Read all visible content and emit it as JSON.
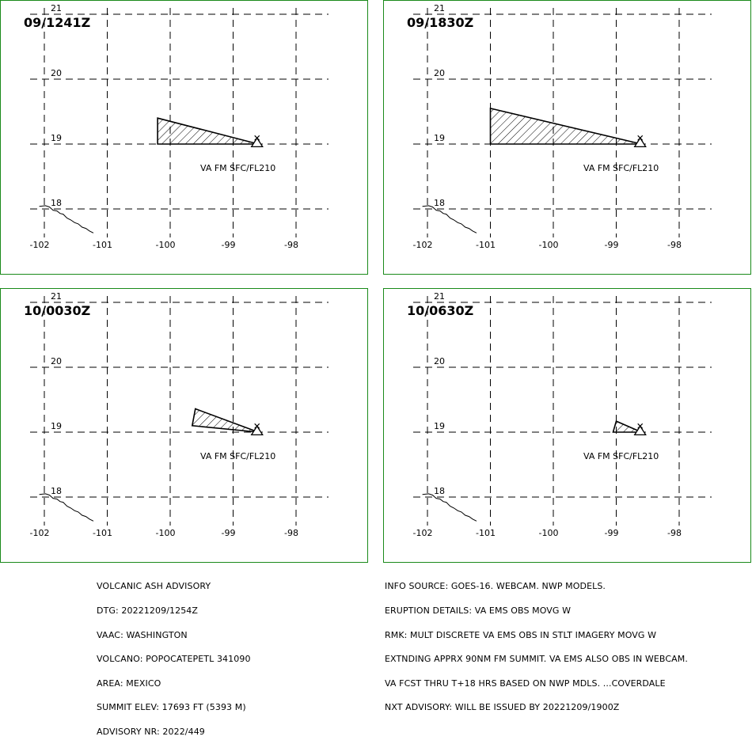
{
  "panels": [
    {
      "time": "09/1241Z",
      "ash_polygon": [
        [
          -100.2,
          19.4
        ],
        [
          -98.6,
          19.0
        ],
        [
          -100.2,
          19.0
        ]
      ],
      "va_label": "VA FM SFC/FL210",
      "show_coast": true
    },
    {
      "time": "09/1830Z",
      "ash_polygon": [
        [
          -101.0,
          19.55
        ],
        [
          -98.6,
          19.0
        ],
        [
          -101.0,
          19.0
        ]
      ],
      "va_label": "VA FM SFC/FL210",
      "show_coast": true
    },
    {
      "time": "10/0030Z",
      "ash_polygon": [
        [
          -99.6,
          19.36
        ],
        [
          -98.6,
          19.0
        ],
        [
          -99.65,
          19.1
        ]
      ],
      "va_label": "VA FM SFC/FL210",
      "show_coast": true
    },
    {
      "time": "10/0630Z",
      "ash_polygon": [
        [
          -99.0,
          19.17
        ],
        [
          -98.6,
          19.0
        ],
        [
          -99.05,
          19.0
        ]
      ],
      "va_label": "VA FM SFC/FL210",
      "show_coast": true
    }
  ],
  "map": {
    "lon_ticks": [
      -102,
      -101,
      -100,
      -99,
      -98
    ],
    "lat_ticks": [
      21,
      20,
      19,
      18
    ],
    "lon_labels": [
      "-102",
      "-101",
      "-100",
      "-99",
      "-98"
    ],
    "lat_labels": [
      "21",
      "20",
      "19",
      "18"
    ],
    "volcano_lon": -98.62,
    "volcano_lat": 19.02,
    "frame_color": "#1a8a1a"
  },
  "advisory_left": [
    "VOLCANIC ASH ADVISORY",
    "DTG: 20221209/1254Z",
    "VAAC: WASHINGTON",
    "VOLCANO: POPOCATEPETL 341090",
    "AREA: MEXICO",
    "SUMMIT ELEV: 17693 FT (5393 M)",
    "ADVISORY NR: 2022/449"
  ],
  "advisory_right": [
    "INFO SOURCE: GOES-16. WEBCAM. NWP MODELS.",
    "ERUPTION DETAILS: VA EMS OBS MOVG W",
    "RMK: MULT DISCRETE VA EMS OBS IN STLT IMAGERY MOVG W",
    "EXTNDING APPRX 90NM FM SUMMIT. VA EMS ALSO OBS IN WEBCAM.",
    "VA FCST THRU T+18 HRS BASED ON NWP MDLS. ...COVERDALE",
    "NXT ADVISORY: WILL BE ISSUED BY 20221209/1900Z"
  ]
}
